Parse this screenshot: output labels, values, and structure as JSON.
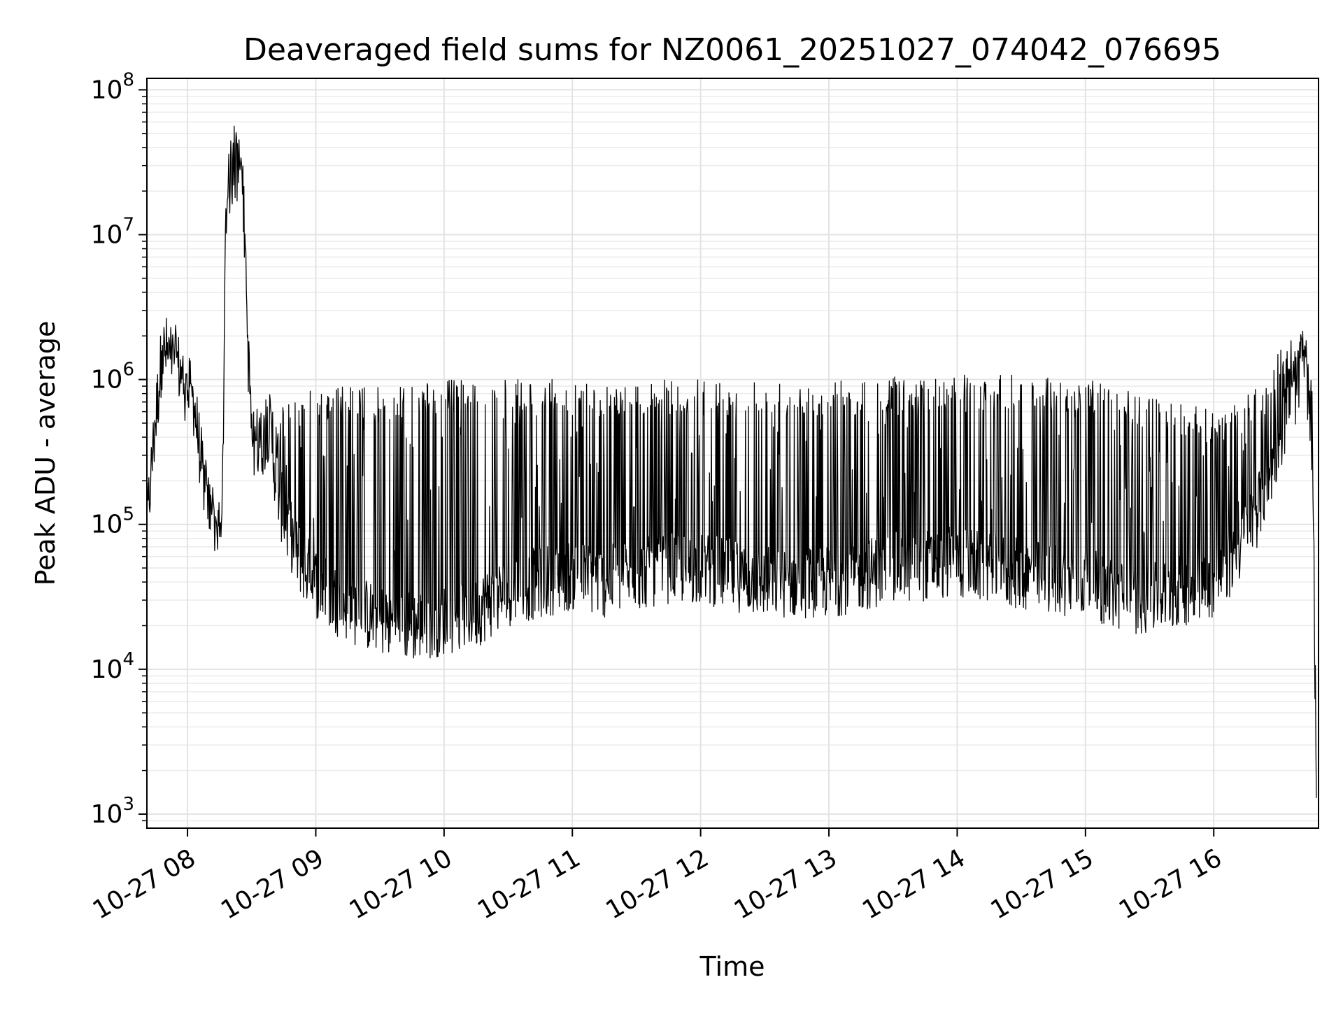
{
  "chart_data": {
    "type": "line",
    "title": "Deaveraged field sums for NZ0061_20251027_074042_076695",
    "xlabel": "Time",
    "ylabel": "Peak ADU - average",
    "yscale": "log",
    "grid": true,
    "ylim": [
      800,
      120000000
    ],
    "xlim": [
      "2025-10-27 07:41",
      "2025-10-27 16:49"
    ],
    "line_color": "#000000",
    "x_ticks": [
      {
        "t": "2025-10-27 08:00",
        "label": "10-27 08"
      },
      {
        "t": "2025-10-27 09:00",
        "label": "10-27 09"
      },
      {
        "t": "2025-10-27 10:00",
        "label": "10-27 10"
      },
      {
        "t": "2025-10-27 11:00",
        "label": "10-27 11"
      },
      {
        "t": "2025-10-27 12:00",
        "label": "10-27 12"
      },
      {
        "t": "2025-10-27 13:00",
        "label": "10-27 13"
      },
      {
        "t": "2025-10-27 14:00",
        "label": "10-27 14"
      },
      {
        "t": "2025-10-27 15:00",
        "label": "10-27 15"
      },
      {
        "t": "2025-10-27 16:00",
        "label": "10-27 16"
      }
    ],
    "y_ticks": [
      {
        "value": 1000,
        "base": "10",
        "exp": "3"
      },
      {
        "value": 10000,
        "base": "10",
        "exp": "4"
      },
      {
        "value": 100000,
        "base": "10",
        "exp": "5"
      },
      {
        "value": 1000000,
        "base": "10",
        "exp": "6"
      },
      {
        "value": 10000000,
        "base": "10",
        "exp": "7"
      },
      {
        "value": 100000000,
        "base": "10",
        "exp": "8"
      }
    ],
    "series": [
      {
        "x": [
          "2025-10-27 07:41",
          "2025-10-27 07:45",
          "2025-10-27 07:48",
          "2025-10-27 07:51",
          "2025-10-27 07:55",
          "2025-10-27 07:59",
          "2025-10-27 08:03",
          "2025-10-27 08:06",
          "2025-10-27 08:09",
          "2025-10-27 08:12",
          "2025-10-27 08:14",
          "2025-10-27 08:16",
          "2025-10-27 08:18",
          "2025-10-27 08:20",
          "2025-10-27 08:22",
          "2025-10-27 08:24",
          "2025-10-27 08:26",
          "2025-10-27 08:28",
          "2025-10-27 08:30",
          "2025-10-27 08:32",
          "2025-10-27 08:34",
          "2025-10-27 08:36",
          "2025-10-27 08:38",
          "2025-10-27 08:40",
          "2025-10-27 08:43",
          "2025-10-27 08:46",
          "2025-10-27 08:49",
          "2025-10-27 08:52",
          "2025-10-27 08:55",
          "2025-10-27 09:00",
          "2025-10-27 09:10",
          "2025-10-27 09:20",
          "2025-10-27 09:30",
          "2025-10-27 09:45",
          "2025-10-27 10:00",
          "2025-10-27 10:15",
          "2025-10-27 10:30",
          "2025-10-27 10:45",
          "2025-10-27 11:00",
          "2025-10-27 11:15",
          "2025-10-27 11:30",
          "2025-10-27 11:45",
          "2025-10-27 12:00",
          "2025-10-27 12:30",
          "2025-10-27 13:00",
          "2025-10-27 13:30",
          "2025-10-27 14:00",
          "2025-10-27 14:30",
          "2025-10-27 15:00",
          "2025-10-27 15:15",
          "2025-10-27 15:30",
          "2025-10-27 15:45",
          "2025-10-27 16:00",
          "2025-10-27 16:10",
          "2025-10-27 16:20",
          "2025-10-27 16:30",
          "2025-10-27 16:36",
          "2025-10-27 16:40",
          "2025-10-27 16:43",
          "2025-10-27 16:46",
          "2025-10-27 16:48"
        ],
        "base": [
          100000,
          500000,
          1500000,
          1600000,
          1300000,
          900000,
          700000,
          300000,
          150000,
          110000,
          90000,
          80000,
          15000000,
          25000000,
          30000000,
          25000000,
          20000000,
          2000000,
          400000,
          300000,
          350000,
          400000,
          500000,
          300000,
          150000,
          100000,
          80000,
          60000,
          50000,
          40000,
          30000,
          25000,
          22000,
          20000,
          22000,
          25000,
          35000,
          40000,
          45000,
          40000,
          45000,
          50000,
          50000,
          40000,
          40000,
          50000,
          55000,
          45000,
          40000,
          32000,
          30000,
          35000,
          40000,
          60000,
          120000,
          350000,
          700000,
          1000000,
          1300000,
          300000,
          2000
        ],
        "spike_top": [
          200000,
          700000,
          2000000,
          2000000,
          1700000,
          1200000,
          900000,
          400000,
          200000,
          150000,
          120000,
          100000,
          25000000,
          50000000,
          60000000,
          50000000,
          30000000,
          3000000,
          800000,
          600000,
          700000,
          900000,
          900000,
          700000,
          600000,
          800000,
          800000,
          900000,
          900000,
          900000,
          900000,
          900000,
          900000,
          950000,
          1000000,
          1000000,
          1000000,
          1000000,
          1000000,
          950000,
          950000,
          1000000,
          1000000,
          1000000,
          1000000,
          1050000,
          1100000,
          1100000,
          1000000,
          900000,
          800000,
          700000,
          600000,
          700000,
          900000,
          1500000,
          2000000,
          2500000,
          2500000,
          1000000,
          5000
        ]
      }
    ]
  }
}
